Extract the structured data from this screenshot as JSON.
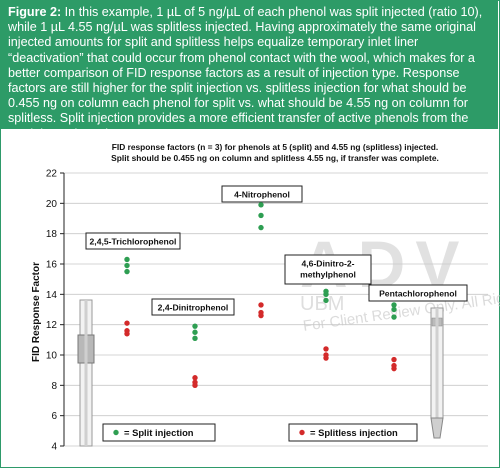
{
  "caption": {
    "label": "Figure 2:",
    "text": " In this example, 1 µL of 5 ng/µL of each phenol was split injected (ratio 10), while 1 µL 4.55 ng/µL was splitless injected. Having approximately the same original injected amounts for split and splitless helps equalize temporary inlet liner “deactivation” that could occur from phenol contact with the wool, which makes for a better comparison of FID response factors as a result of injection type. Response factors are still higher for the split injection vs. splitless injection for what should be 0.455 ng on column each phenol for split vs. what should be 4.55 ng on column for splitless. Split injection provides a more efficient transfer of active phenols from the GC inlet to the column."
  },
  "watermark": {
    "logo": "ADV",
    "small": "UBM",
    "review": "For Client Review Only. All Rights Reserved."
  },
  "colors": {
    "caption_bg": "#2d9b67",
    "split": "#2e9e52",
    "splitless": "#d32a2a"
  },
  "chart_data": {
    "type": "scatter",
    "title": "FID response factors (n = 3) for phenols at 5 (split) and 4.55 ng (splitless) injected. Split should be 0.455 ng on column and splitless 4.55 ng, if transfer was complete.",
    "title_lines": [
      "FID response factors (n = 3) for phenols at 5 (split) and 4.55 ng (splitless) injected.",
      "Split should be 0.455 ng on column and splitless 4.55 ng, if transfer was complete."
    ],
    "ylabel": "FID Response Factor",
    "xlabel": "",
    "ylim": [
      4,
      22
    ],
    "yticks": [
      4,
      6,
      8,
      10,
      12,
      14,
      16,
      18,
      20,
      22
    ],
    "grid": true,
    "categories": [
      "2,4,5-Trichlorophenol",
      "2,4-Dinitrophenol",
      "4-Nitrophenol",
      "4,6-Dinitro-2-methylphenol",
      "Pentachlorophenol"
    ],
    "category_labels": [
      [
        "2,4,5-Trichlorophenol"
      ],
      [
        "2,4-Dinitrophenol"
      ],
      [
        "4-Nitrophenol"
      ],
      [
        "4,6-Dinitro-2-",
        "methylphenol"
      ],
      [
        "Pentachlorophenol"
      ]
    ],
    "series": [
      {
        "name": "Split injection",
        "values": [
          [
            16.3,
            15.9,
            15.5
          ],
          [
            11.9,
            11.5,
            11.1
          ],
          [
            19.9,
            19.2,
            18.4
          ],
          [
            14.2,
            14.0,
            13.6
          ],
          [
            13.3,
            13.0,
            12.5
          ]
        ]
      },
      {
        "name": "Splitless injection",
        "values": [
          [
            12.1,
            11.6,
            11.4
          ],
          [
            8.5,
            8.2,
            8.0
          ],
          [
            13.3,
            12.8,
            12.6
          ],
          [
            10.4,
            10.0,
            9.8
          ],
          [
            9.7,
            9.3,
            9.1
          ]
        ]
      }
    ],
    "legend": [
      {
        "series": "Split injection",
        "text": "= Split injection"
      },
      {
        "series": "Splitless injection",
        "text": "= Splitless injection"
      }
    ],
    "legend_position": "bottom"
  }
}
